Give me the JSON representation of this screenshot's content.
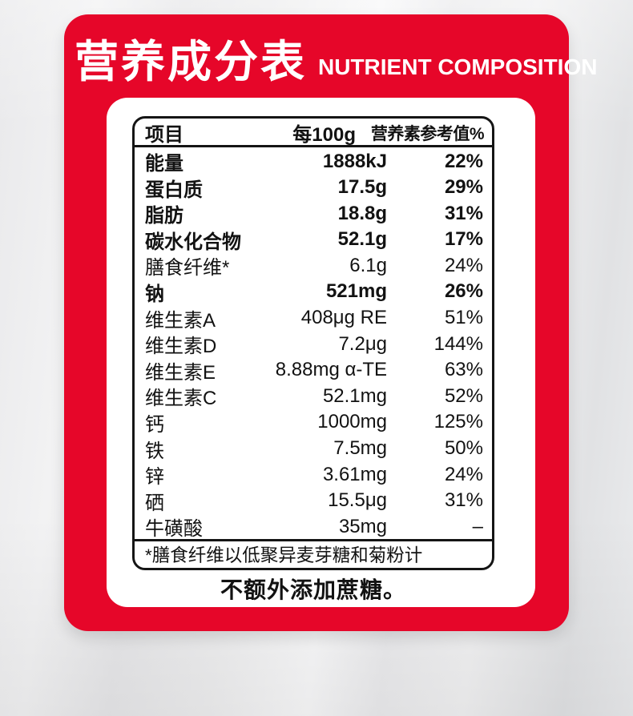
{
  "title": {
    "zh": "营养成分表",
    "en": "NUTRIENT COMPOSITION"
  },
  "table": {
    "header": {
      "item": "项目",
      "per": "每100g",
      "nrv": "营养素参考值%"
    },
    "rows": [
      {
        "name": "能量",
        "amount": "1888kJ",
        "nrv": "22%",
        "bold": true
      },
      {
        "name": "蛋白质",
        "amount": "17.5g",
        "nrv": "29%",
        "bold": true
      },
      {
        "name": "脂肪",
        "amount": "18.8g",
        "nrv": "31%",
        "bold": true
      },
      {
        "name": "碳水化合物",
        "amount": "52.1g",
        "nrv": "17%",
        "bold": true
      },
      {
        "name": "膳食纤维*",
        "amount": "6.1g",
        "nrv": "24%",
        "bold": false
      },
      {
        "name": "钠",
        "amount": "521mg",
        "nrv": "26%",
        "bold": true
      },
      {
        "name": "维生素A",
        "amount": "408μg RE",
        "nrv": "51%",
        "bold": false
      },
      {
        "name": "维生素D",
        "amount": "7.2μg",
        "nrv": "144%",
        "bold": false
      },
      {
        "name": "维生素E",
        "amount": "8.88mg α-TE",
        "nrv": "63%",
        "bold": false
      },
      {
        "name": "维生素C",
        "amount": "52.1mg",
        "nrv": "52%",
        "bold": false
      },
      {
        "name": "钙",
        "amount": "1000mg",
        "nrv": "125%",
        "bold": false
      },
      {
        "name": "铁",
        "amount": "7.5mg",
        "nrv": "50%",
        "bold": false
      },
      {
        "name": "锌",
        "amount": "3.61mg",
        "nrv": "24%",
        "bold": false
      },
      {
        "name": "硒",
        "amount": "15.5μg",
        "nrv": "31%",
        "bold": false
      },
      {
        "name": "牛磺酸",
        "amount": "35mg",
        "nrv": "–",
        "bold": false
      }
    ],
    "footnote": "*膳食纤维以低聚异麦芽糖和菊粉计"
  },
  "note": "不额外添加蔗糖。",
  "colors": {
    "card_red": "#e60629",
    "panel": "#ffffff",
    "text": "#121212",
    "border": "#151515"
  }
}
